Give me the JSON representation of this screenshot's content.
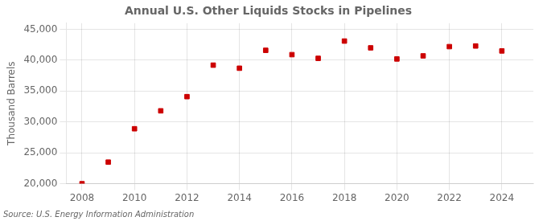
{
  "chart_data": {
    "type": "scatter",
    "title": "Annual U.S. Other Liquids Stocks in Pipelines",
    "ylabel": "Thousand Barrels",
    "source": "Source: U.S. Energy Information Administration",
    "x": [
      2008,
      2009,
      2010,
      2011,
      2012,
      2013,
      2014,
      2015,
      2016,
      2017,
      2018,
      2019,
      2020,
      2021,
      2022,
      2023,
      2024
    ],
    "values": [
      20000,
      23500,
      28900,
      31800,
      34100,
      39200,
      38700,
      41600,
      40900,
      40300,
      43100,
      42000,
      40200,
      40700,
      42200,
      42300,
      41500
    ],
    "color": "#cc0000",
    "marker": "square",
    "xlim": [
      2007.4,
      2025.2
    ],
    "xticks": [
      2008,
      2010,
      2012,
      2014,
      2016,
      2018,
      2020,
      2022,
      2024
    ],
    "ylim": [
      20000,
      46000
    ],
    "yticks": [
      {
        "value": 20000,
        "label": "20,000"
      },
      {
        "value": 25000,
        "label": "25,000"
      },
      {
        "value": 30000,
        "label": "30,000"
      },
      {
        "value": 35000,
        "label": "35,000"
      },
      {
        "value": 40000,
        "label": "40,000"
      },
      {
        "value": 45000,
        "label": "45,000"
      }
    ],
    "grid": true
  }
}
